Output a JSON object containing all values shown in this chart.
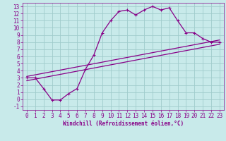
{
  "title": "",
  "xlabel": "Windchill (Refroidissement éolien,°C)",
  "bg_color": "#c8eaea",
  "grid_color": "#a0cccc",
  "line_color": "#880088",
  "xlim": [
    -0.5,
    23.5
  ],
  "ylim": [
    -1.5,
    13.5
  ],
  "xticks": [
    0,
    1,
    2,
    3,
    4,
    5,
    6,
    7,
    8,
    9,
    10,
    11,
    12,
    13,
    14,
    15,
    16,
    17,
    18,
    19,
    20,
    21,
    22,
    23
  ],
  "yticks": [
    -1,
    0,
    1,
    2,
    3,
    4,
    5,
    6,
    7,
    8,
    9,
    10,
    11,
    12,
    13
  ],
  "main_x": [
    0,
    1,
    2,
    3,
    4,
    5,
    6,
    7,
    8,
    9,
    10,
    11,
    12,
    13,
    14,
    15,
    16,
    17,
    18,
    19,
    20,
    21,
    22,
    23
  ],
  "main_y": [
    3.0,
    3.0,
    1.5,
    -0.1,
    -0.1,
    0.8,
    1.5,
    4.2,
    6.2,
    9.3,
    11.0,
    12.3,
    12.5,
    11.8,
    12.5,
    13.0,
    12.5,
    12.8,
    11.0,
    9.3,
    9.3,
    8.5,
    8.0,
    8.0
  ],
  "line1_x": [
    0,
    23
  ],
  "line1_y": [
    3.2,
    8.3
  ],
  "line2_x": [
    0,
    23
  ],
  "line2_y": [
    2.6,
    7.7
  ],
  "tickfontsize": 5.5,
  "labelfontsize": 5.5
}
